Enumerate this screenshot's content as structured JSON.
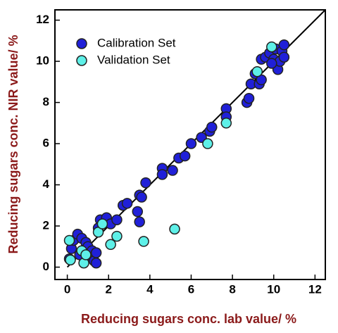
{
  "chart_data": {
    "type": "scatter",
    "xlabel": "Reducing sugars conc. lab value/ %",
    "ylabel": "Reducing sugars conc. NIR value/ %",
    "xlim": [
      -0.6,
      12.5
    ],
    "ylim": [
      -0.6,
      12.5
    ],
    "xticks": [
      0,
      2,
      4,
      6,
      8,
      10,
      12
    ],
    "yticks": [
      0,
      2,
      4,
      6,
      8,
      10,
      12
    ],
    "legend": "upper left",
    "series": [
      {
        "name": "Calibration Set",
        "color": "#2020d8",
        "x": [
          0.1,
          0.2,
          0.3,
          0.5,
          0.6,
          0.7,
          0.9,
          1.0,
          1.1,
          1.2,
          1.3,
          1.4,
          1.4,
          1.5,
          1.6,
          1.9,
          2.1,
          2.4,
          2.7,
          2.9,
          3.4,
          3.5,
          3.5,
          3.6,
          3.8,
          4.6,
          4.6,
          5.1,
          5.4,
          5.7,
          6.0,
          6.5,
          6.9,
          7.0,
          7.7,
          7.7,
          8.7,
          8.8,
          8.9,
          9.1,
          9.3,
          9.4,
          9.4,
          9.6,
          9.8,
          10.0,
          10.1,
          10.2,
          10.3,
          10.4,
          10.5,
          10.5,
          9.9
        ],
        "y": [
          0.4,
          0.9,
          1.3,
          1.6,
          0.6,
          1.4,
          1.2,
          1.0,
          0.5,
          0.8,
          0.3,
          0.2,
          0.7,
          1.9,
          2.3,
          2.4,
          2.1,
          2.3,
          3.0,
          3.1,
          2.7,
          3.5,
          2.2,
          3.4,
          4.1,
          4.8,
          4.5,
          4.7,
          5.3,
          5.4,
          6.0,
          6.3,
          6.6,
          6.8,
          7.7,
          7.3,
          8.0,
          8.2,
          8.9,
          9.4,
          8.9,
          9.1,
          10.1,
          10.2,
          10.4,
          10.1,
          10.6,
          9.6,
          10.0,
          10.5,
          10.8,
          10.2,
          9.9
        ]
      },
      {
        "name": "Validation Set",
        "color": "#5ef0e8",
        "x": [
          0.1,
          0.15,
          0.7,
          0.8,
          0.9,
          1.5,
          1.7,
          2.1,
          2.4,
          3.7,
          5.2,
          6.8,
          7.7,
          9.2,
          9.9
        ],
        "y": [
          1.3,
          0.35,
          0.8,
          0.2,
          0.6,
          1.7,
          2.1,
          1.1,
          1.5,
          1.25,
          1.85,
          6.0,
          7.0,
          9.5,
          10.7
        ]
      }
    ]
  }
}
